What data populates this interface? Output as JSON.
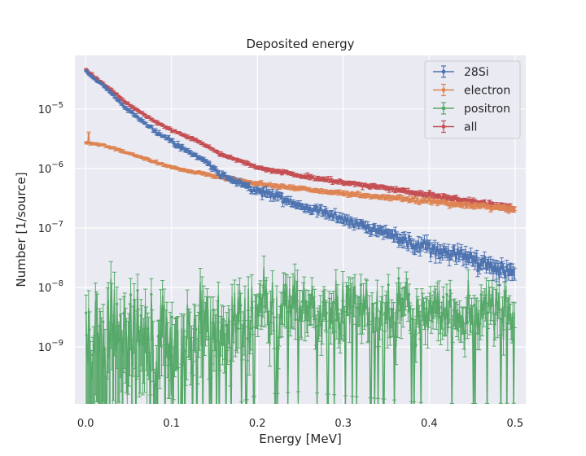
{
  "chart_data": {
    "type": "line",
    "title": "Deposited energy",
    "xlabel": "Energy [MeV]",
    "ylabel": "Number [1/source]",
    "xlim": [
      -0.0125,
      0.5125
    ],
    "ylim": [
      1.1e-10,
      8e-05
    ],
    "yscale": "log",
    "grid": true,
    "legend_position": "top-right",
    "x_ticks": [
      0.0,
      0.1,
      0.2,
      0.3,
      0.4,
      0.5
    ],
    "x_tick_labels": [
      "0.0",
      "0.1",
      "0.2",
      "0.3",
      "0.4",
      "0.5"
    ],
    "y_ticks": [
      1e-09,
      1e-08,
      1e-07,
      1e-06,
      1e-05
    ],
    "y_tick_labels": [
      {
        "base": "10",
        "exp": "−9"
      },
      {
        "base": "10",
        "exp": "−8"
      },
      {
        "base": "10",
        "exp": "−7"
      },
      {
        "base": "10",
        "exp": "−6"
      },
      {
        "base": "10",
        "exp": "−5"
      }
    ],
    "bins": 500,
    "series": [
      {
        "name": "28Si",
        "color": "#4c72b0",
        "trend": [
          [
            0.0,
            4.4e-05
          ],
          [
            0.01,
            3.2e-05
          ],
          [
            0.02,
            2.6e-05
          ],
          [
            0.03,
            1.8e-05
          ],
          [
            0.05,
            9.5e-06
          ],
          [
            0.08,
            4.5e-06
          ],
          [
            0.1,
            2.8e-06
          ],
          [
            0.13,
            1.6e-06
          ],
          [
            0.16,
            7.5e-07
          ],
          [
            0.2,
            4.3e-07
          ],
          [
            0.25,
            2.4e-07
          ],
          [
            0.3,
            1.4e-07
          ],
          [
            0.35,
            8e-08
          ],
          [
            0.4,
            5e-08
          ],
          [
            0.45,
            3e-08
          ],
          [
            0.5,
            1.7e-08
          ]
        ],
        "rel_noise": [
          [
            0.0,
            0.02
          ],
          [
            0.1,
            0.05
          ],
          [
            0.3,
            0.09
          ],
          [
            0.5,
            0.16
          ]
        ],
        "rel_err": [
          [
            0.0,
            0.02
          ],
          [
            0.1,
            0.05
          ],
          [
            0.3,
            0.12
          ],
          [
            0.5,
            0.22
          ]
        ]
      },
      {
        "name": "electron",
        "color": "#dd8452",
        "trend": [
          [
            0.0,
            2.7e-06
          ],
          [
            0.02,
            2.5e-06
          ],
          [
            0.05,
            1.8e-06
          ],
          [
            0.1,
            1.05e-06
          ],
          [
            0.15,
            7.5e-07
          ],
          [
            0.2,
            5.6e-07
          ],
          [
            0.25,
            4.6e-07
          ],
          [
            0.3,
            3.8e-07
          ],
          [
            0.35,
            3.3e-07
          ],
          [
            0.4,
            2.8e-07
          ],
          [
            0.45,
            2.4e-07
          ],
          [
            0.5,
            2.05e-07
          ]
        ],
        "rel_noise": [
          [
            0.0,
            0.02
          ],
          [
            0.5,
            0.05
          ]
        ],
        "rel_err": [
          [
            0.0,
            0.03
          ],
          [
            0.5,
            0.07
          ]
        ]
      },
      {
        "name": "positron",
        "color": "#55a868",
        "trend": [
          [
            0.0,
            1.5e-09
          ],
          [
            0.1,
            1.7e-09
          ],
          [
            0.15,
            2.3e-09
          ],
          [
            0.2,
            5e-09
          ],
          [
            0.25,
            5.8e-09
          ],
          [
            0.3,
            5e-09
          ],
          [
            0.35,
            4.4e-09
          ],
          [
            0.4,
            3.8e-09
          ],
          [
            0.45,
            3.8e-09
          ],
          [
            0.5,
            3.9e-09
          ]
        ],
        "rel_noise": [
          [
            0.0,
            0.7
          ],
          [
            0.2,
            0.45
          ],
          [
            0.5,
            0.35
          ]
        ],
        "rel_err": [
          [
            0.0,
            1.0
          ],
          [
            0.2,
            0.55
          ],
          [
            0.5,
            0.45
          ]
        ]
      },
      {
        "name": "all",
        "color": "#c44e52",
        "trend": [
          [
            0.0,
            4.7e-05
          ],
          [
            0.01,
            3.5e-05
          ],
          [
            0.03,
            2.1e-05
          ],
          [
            0.05,
            1.2e-05
          ],
          [
            0.08,
            6.3e-06
          ],
          [
            0.1,
            4.4e-06
          ],
          [
            0.13,
            2.9e-06
          ],
          [
            0.16,
            1.7e-06
          ],
          [
            0.2,
            1.05e-06
          ],
          [
            0.25,
            7.6e-07
          ],
          [
            0.3,
            5.8e-07
          ],
          [
            0.35,
            4.7e-07
          ],
          [
            0.4,
            3.6e-07
          ],
          [
            0.45,
            2.8e-07
          ],
          [
            0.5,
            2.1e-07
          ]
        ],
        "rel_noise": [
          [
            0.0,
            0.02
          ],
          [
            0.5,
            0.05
          ]
        ],
        "rel_err": [
          [
            0.0,
            0.03
          ],
          [
            0.5,
            0.07
          ]
        ]
      }
    ]
  }
}
